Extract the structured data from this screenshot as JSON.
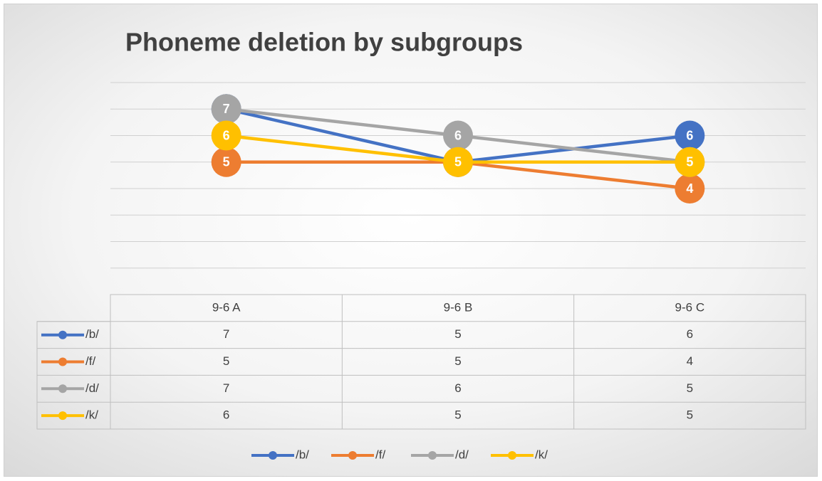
{
  "chart_data": {
    "type": "line",
    "title": "Phoneme deletion by subgroups",
    "categories": [
      "9-6 A",
      "9-6 B",
      "9-6 C"
    ],
    "series": [
      {
        "name": "/b/",
        "color": "#4472c4",
        "values": [
          7,
          5,
          6
        ]
      },
      {
        "name": "/f/",
        "color": "#ed7d31",
        "values": [
          5,
          5,
          4
        ]
      },
      {
        "name": "/d/",
        "color": "#a5a5a5",
        "values": [
          7,
          6,
          5
        ]
      },
      {
        "name": "/k/",
        "color": "#ffc000",
        "values": [
          6,
          5,
          5
        ]
      }
    ],
    "ylim": [
      0,
      8
    ],
    "yticks": [
      0,
      1,
      2,
      3,
      4,
      5,
      6,
      7,
      8
    ],
    "grid": true,
    "legend": "bottom"
  }
}
